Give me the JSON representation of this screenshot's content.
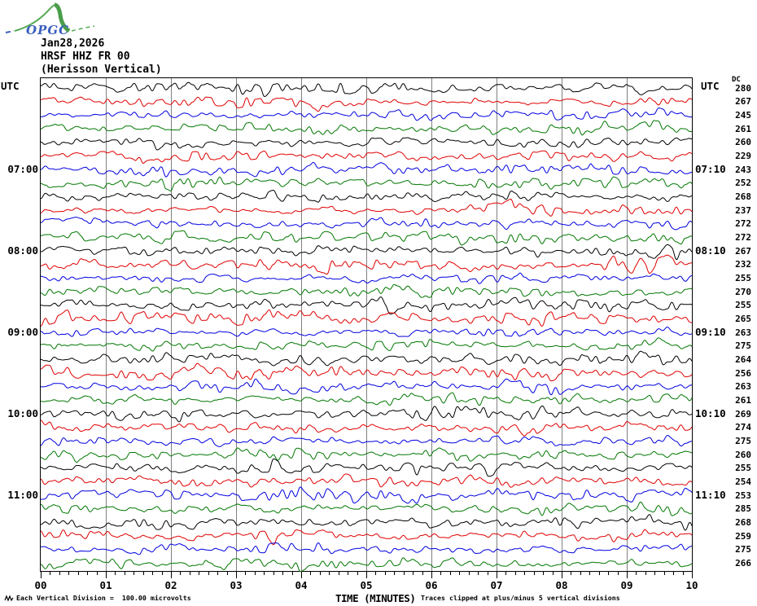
{
  "logo": {
    "text": "OPGC"
  },
  "header": {
    "date": "Jan28,2026",
    "station": "HRSF HHZ FR 00",
    "station_name": "(Herisson Vertical)"
  },
  "footer": {
    "scale_note": "Each Vertical Division =  100.00 microvolts",
    "clip_note": "Traces clipped at plus/minus 5 vertical divisions"
  },
  "colors": {
    "black": "#000000",
    "red": "#e00000",
    "blue": "#0000e0",
    "green": "#007700",
    "grid": "#808080",
    "logo_green": "#55aa55",
    "logo_blue": "#3a5fc0"
  },
  "chart_data": {
    "type": "line",
    "subtype": "helicorder-seismogram",
    "x_label": "TIME (MINUTES)",
    "x_ticks": [
      "00",
      "01",
      "02",
      "03",
      "04",
      "05",
      "06",
      "07",
      "08",
      "09",
      "10"
    ],
    "x_range_minutes": [
      0,
      10
    ],
    "minutes_per_line": 10,
    "left_axis_header": "UTC",
    "right_axis_header": "UTC",
    "dc_header": "DC",
    "traces": [
      {
        "start": "06:00",
        "color": "black",
        "dc": 280
      },
      {
        "start": "06:10",
        "color": "red",
        "dc": 267
      },
      {
        "start": "06:20",
        "color": "blue",
        "dc": 245
      },
      {
        "start": "06:30",
        "color": "green",
        "dc": 261
      },
      {
        "start": "06:40",
        "color": "black",
        "dc": 260
      },
      {
        "start": "06:50",
        "color": "red",
        "dc": 229
      },
      {
        "start": "07:00",
        "color": "blue",
        "dc": 243,
        "label_left": "07:00",
        "label_right": "07:10"
      },
      {
        "start": "07:10",
        "color": "green",
        "dc": 252
      },
      {
        "start": "07:20",
        "color": "black",
        "dc": 268
      },
      {
        "start": "07:30",
        "color": "red",
        "dc": 237
      },
      {
        "start": "07:40",
        "color": "blue",
        "dc": 272
      },
      {
        "start": "07:50",
        "color": "green",
        "dc": 272
      },
      {
        "start": "08:00",
        "color": "black",
        "dc": 267,
        "label_left": "08:00",
        "label_right": "08:10"
      },
      {
        "start": "08:10",
        "color": "red",
        "dc": 232
      },
      {
        "start": "08:20",
        "color": "blue",
        "dc": 255
      },
      {
        "start": "08:30",
        "color": "green",
        "dc": 270
      },
      {
        "start": "08:40",
        "color": "black",
        "dc": 255
      },
      {
        "start": "08:50",
        "color": "red",
        "dc": 265
      },
      {
        "start": "09:00",
        "color": "blue",
        "dc": 263,
        "label_left": "09:00",
        "label_right": "09:10"
      },
      {
        "start": "09:10",
        "color": "green",
        "dc": 275
      },
      {
        "start": "09:20",
        "color": "black",
        "dc": 264
      },
      {
        "start": "09:30",
        "color": "red",
        "dc": 256
      },
      {
        "start": "09:40",
        "color": "blue",
        "dc": 263
      },
      {
        "start": "09:50",
        "color": "green",
        "dc": 261
      },
      {
        "start": "10:00",
        "color": "black",
        "dc": 269,
        "label_left": "10:00",
        "label_right": "10:10"
      },
      {
        "start": "10:10",
        "color": "red",
        "dc": 274
      },
      {
        "start": "10:20",
        "color": "blue",
        "dc": 275
      },
      {
        "start": "10:30",
        "color": "green",
        "dc": 260
      },
      {
        "start": "10:40",
        "color": "black",
        "dc": 255
      },
      {
        "start": "10:50",
        "color": "red",
        "dc": 254
      },
      {
        "start": "11:00",
        "color": "blue",
        "dc": 253,
        "label_left": "11:00",
        "label_right": "11:10"
      },
      {
        "start": "11:10",
        "color": "green",
        "dc": 285
      },
      {
        "start": "11:20",
        "color": "black",
        "dc": 268
      },
      {
        "start": "11:30",
        "color": "red",
        "dc": 259
      },
      {
        "start": "11:40",
        "color": "blue",
        "dc": 275
      },
      {
        "start": "11:50",
        "color": "green",
        "dc": 266
      }
    ]
  }
}
